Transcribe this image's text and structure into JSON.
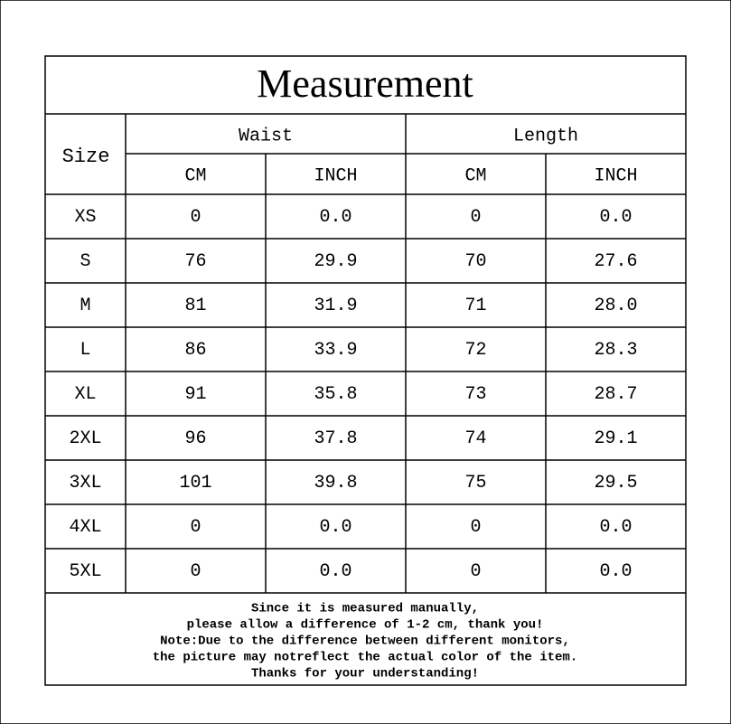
{
  "header": {
    "title": "Measurement",
    "size": "Size",
    "groups": [
      {
        "label": "Waist",
        "units": [
          "CM",
          "INCH"
        ]
      },
      {
        "label": "Length",
        "units": [
          "CM",
          "INCH"
        ]
      }
    ]
  },
  "table": {
    "rows": [
      [
        "XS",
        "0",
        "0.0",
        "0",
        "0.0"
      ],
      [
        "S",
        "76",
        "29.9",
        "70",
        "27.6"
      ],
      [
        "M",
        "81",
        "31.9",
        "71",
        "28.0"
      ],
      [
        "L",
        "86",
        "33.9",
        "72",
        "28.3"
      ],
      [
        "XL",
        "91",
        "35.8",
        "73",
        "28.7"
      ],
      [
        "2XL",
        "96",
        "37.8",
        "74",
        "29.1"
      ],
      [
        "3XL",
        "101",
        "39.8",
        "75",
        "29.5"
      ],
      [
        "4XL",
        "0",
        "0.0",
        "0",
        "0.0"
      ],
      [
        "5XL",
        "0",
        "0.0",
        "0",
        "0.0"
      ]
    ]
  },
  "footer": {
    "lines": [
      "Since it is measured manually,",
      "please allow a difference of 1-2 cm, thank you!",
      "Note:Due to the difference between different monitors,",
      "the picture may notreflect the actual color of the item.",
      "Thanks for your understanding!"
    ]
  }
}
